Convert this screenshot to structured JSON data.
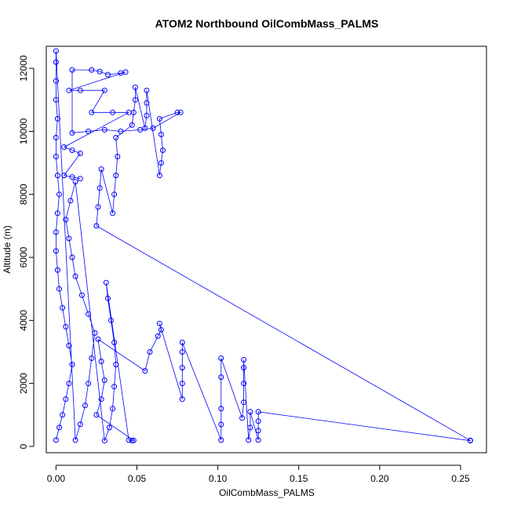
{
  "chart_data": {
    "type": "scatter",
    "title": "ATOM2 Northbound OilCombMass_PALMS",
    "xlabel": "OilCombMass_PALMS",
    "ylabel": "Altitude (m)",
    "xlim": [
      -0.006,
      0.266
    ],
    "ylim": [
      -200,
      12700
    ],
    "xticks": [
      0.0,
      0.05,
      0.1,
      0.15,
      0.2,
      0.25
    ],
    "xtick_labels": [
      "0.00",
      "0.05",
      "0.10",
      "0.15",
      "0.20",
      "0.25"
    ],
    "yticks": [
      0,
      2000,
      4000,
      6000,
      8000,
      10000,
      12000
    ],
    "ytick_labels": [
      "0",
      "2000",
      "4000",
      "6000",
      "8000",
      "10000",
      "12000"
    ],
    "grid": false,
    "series_color": "#0000ff",
    "marker": "open-circle",
    "connected": true,
    "series": [
      {
        "values": [
          [
            0.0,
            200
          ],
          [
            0.002,
            600
          ],
          [
            0.004,
            1000
          ],
          [
            0.006,
            1500
          ],
          [
            0.008,
            2000
          ],
          [
            0.01,
            2600
          ],
          [
            0.008,
            3200
          ],
          [
            0.006,
            3800
          ],
          [
            0.004,
            4400
          ],
          [
            0.002,
            5000
          ],
          [
            0.001,
            5600
          ],
          [
            0.0,
            6200
          ],
          [
            0.0,
            6800
          ],
          [
            0.001,
            7400
          ],
          [
            0.002,
            8000
          ],
          [
            0.001,
            8600
          ],
          [
            0.0,
            9200
          ],
          [
            0.0,
            9800
          ],
          [
            0.001,
            10400
          ],
          [
            0.0,
            11000
          ],
          [
            0.0,
            11600
          ],
          [
            0.0,
            12200
          ],
          [
            0.0,
            12550
          ],
          [
            0.012,
            200
          ],
          [
            0.015,
            700
          ],
          [
            0.018,
            1300
          ],
          [
            0.02,
            2000
          ],
          [
            0.022,
            2800
          ],
          [
            0.024,
            3600
          ],
          [
            0.02,
            4200
          ],
          [
            0.016,
            4800
          ],
          [
            0.012,
            5400
          ],
          [
            0.01,
            6000
          ],
          [
            0.008,
            6600
          ],
          [
            0.006,
            7200
          ],
          [
            0.009,
            7800
          ],
          [
            0.012,
            8400
          ],
          [
            0.03,
            180
          ],
          [
            0.033,
            600
          ],
          [
            0.035,
            1200
          ],
          [
            0.036,
            1900
          ],
          [
            0.037,
            2600
          ],
          [
            0.036,
            3300
          ],
          [
            0.034,
            4000
          ],
          [
            0.032,
            4700
          ],
          [
            0.031,
            5200
          ],
          [
            0.045,
            200
          ],
          [
            0.047,
            180
          ],
          [
            0.048,
            190
          ],
          [
            0.025,
            1000
          ],
          [
            0.028,
            1500
          ],
          [
            0.03,
            2100
          ],
          [
            0.028,
            2700
          ],
          [
            0.026,
            3400
          ],
          [
            0.055,
            2400
          ],
          [
            0.058,
            3000
          ],
          [
            0.063,
            3500
          ],
          [
            0.065,
            3700
          ],
          [
            0.064,
            3900
          ],
          [
            0.078,
            1500
          ],
          [
            0.078,
            2000
          ],
          [
            0.078,
            2500
          ],
          [
            0.078,
            3000
          ],
          [
            0.078,
            3300
          ],
          [
            0.102,
            200
          ],
          [
            0.102,
            700
          ],
          [
            0.102,
            1200
          ],
          [
            0.102,
            2200
          ],
          [
            0.102,
            2800
          ],
          [
            0.115,
            900
          ],
          [
            0.116,
            1400
          ],
          [
            0.116,
            2000
          ],
          [
            0.116,
            2500
          ],
          [
            0.116,
            2750
          ],
          [
            0.119,
            200
          ],
          [
            0.12,
            600
          ],
          [
            0.12,
            1100
          ],
          [
            0.125,
            200
          ],
          [
            0.125,
            500
          ],
          [
            0.125,
            800
          ],
          [
            0.125,
            1100
          ],
          [
            0.256,
            180
          ],
          [
            0.256,
            190
          ],
          [
            0.025,
            7000
          ],
          [
            0.026,
            7600
          ],
          [
            0.027,
            8200
          ],
          [
            0.028,
            8800
          ],
          [
            0.035,
            7400
          ],
          [
            0.036,
            8000
          ],
          [
            0.037,
            8600
          ],
          [
            0.038,
            9200
          ],
          [
            0.037,
            9800
          ],
          [
            0.047,
            10200
          ],
          [
            0.048,
            10600
          ],
          [
            0.049,
            11000
          ],
          [
            0.049,
            11400
          ],
          [
            0.055,
            10100
          ],
          [
            0.056,
            10500
          ],
          [
            0.056,
            10900
          ],
          [
            0.056,
            11300
          ],
          [
            0.064,
            8600
          ],
          [
            0.065,
            9000
          ],
          [
            0.066,
            9400
          ],
          [
            0.065,
            9900
          ],
          [
            0.064,
            10400
          ],
          [
            0.075,
            10600
          ],
          [
            0.077,
            10600
          ],
          [
            0.06,
            10100
          ],
          [
            0.052,
            10050
          ],
          [
            0.04,
            10000
          ],
          [
            0.03,
            10050
          ],
          [
            0.02,
            10000
          ],
          [
            0.01,
            9950
          ],
          [
            0.01,
            11950
          ],
          [
            0.022,
            11950
          ],
          [
            0.027,
            11900
          ],
          [
            0.032,
            11800
          ],
          [
            0.04,
            11850
          ],
          [
            0.043,
            11880
          ],
          [
            0.008,
            11300
          ],
          [
            0.015,
            11300
          ],
          [
            0.03,
            11300
          ],
          [
            0.022,
            10600
          ],
          [
            0.035,
            10600
          ],
          [
            0.045,
            10600
          ],
          [
            0.005,
            9500
          ],
          [
            0.01,
            9400
          ],
          [
            0.015,
            9300
          ],
          [
            0.005,
            8600
          ],
          [
            0.01,
            8550
          ],
          [
            0.015,
            8500
          ]
        ]
      }
    ]
  }
}
